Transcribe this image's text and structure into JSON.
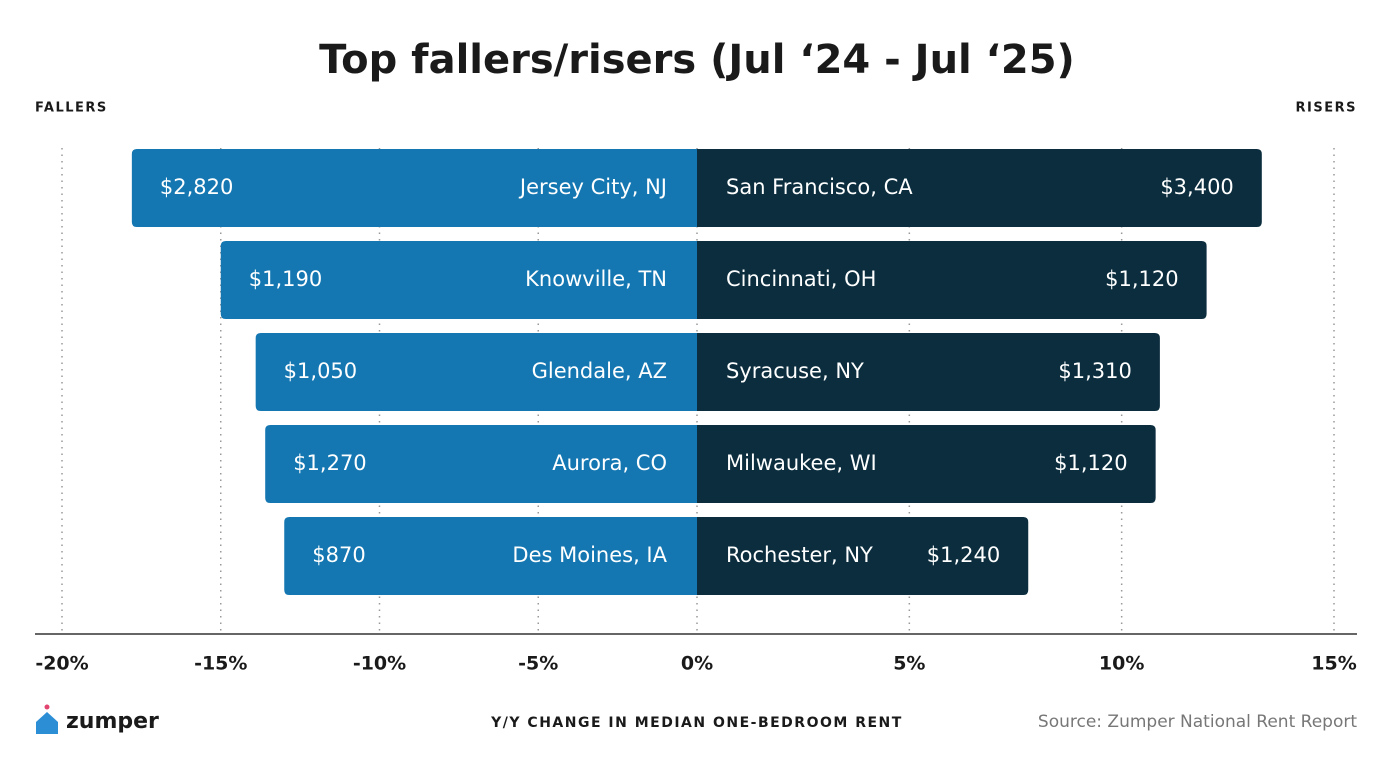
{
  "chart_data": {
    "type": "diverging_bar",
    "title": "Top fallers/risers (Jul ‘24 - Jul ‘25)",
    "xlabel": "Y/Y CHANGE IN MEDIAN ONE-BEDROOM RENT",
    "source": "Source: Zumper National Rent Report",
    "logo": "zumper",
    "xlim": [
      -20,
      15
    ],
    "xticks": [
      {
        "value": -20,
        "label": "-20%"
      },
      {
        "value": -15,
        "label": "-15%"
      },
      {
        "value": -10,
        "label": "-10%"
      },
      {
        "value": -5,
        "label": "-5%"
      },
      {
        "value": 0,
        "label": "0%"
      },
      {
        "value": 5,
        "label": "5%"
      },
      {
        "value": 10,
        "label": "10%"
      },
      {
        "value": 15,
        "label": "15%"
      }
    ],
    "grid": true,
    "series": [
      {
        "name": "FALLERS",
        "color": "#1477b2",
        "categories": [
          "Jersey City, NJ",
          "Knowville, TN",
          "Glendale, AZ",
          "Aurora, CO",
          "Des Moines, IA"
        ],
        "values": [
          -17.8,
          -15.0,
          -13.9,
          -13.6,
          -13.0
        ],
        "rents": [
          "$2,820",
          "$1,190",
          "$1,050",
          "$1,270",
          "$870"
        ]
      },
      {
        "name": "RISERS",
        "color": "#0b2d3e",
        "categories": [
          "San Francisco, CA",
          "Cincinnati, OH",
          "Syracuse, NY",
          "Milwaukee, WI",
          "Rochester, NY"
        ],
        "values": [
          13.3,
          12.0,
          10.9,
          10.8,
          7.8
        ],
        "rents": [
          "$3,400",
          "$1,120",
          "$1,310",
          "$1,120",
          "$1,240"
        ]
      }
    ]
  }
}
